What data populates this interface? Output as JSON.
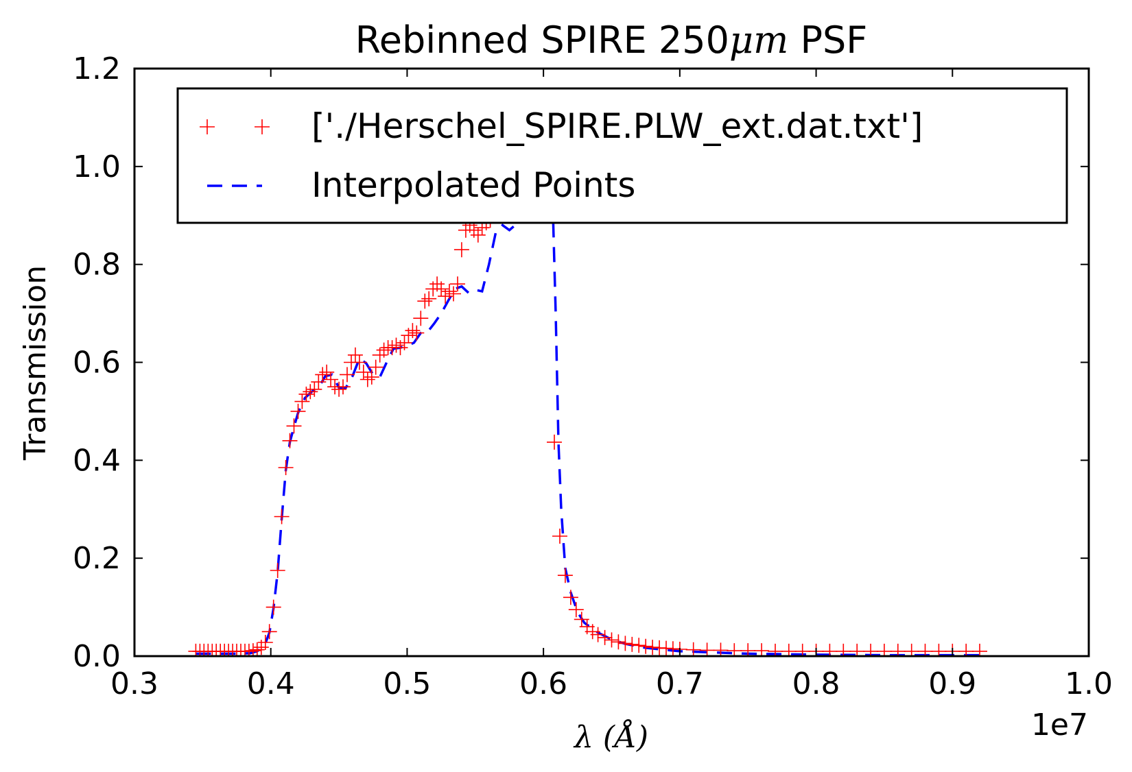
{
  "chart_data": {
    "type": "line",
    "title_prefix": "Rebinned SPIRE 250",
    "title_math": "μm",
    "title_suffix": " PSF",
    "xlabel": "λ (Å)",
    "ylabel": "Transmission",
    "x_offset_label": "1e7",
    "xlim": [
      0.3,
      1.0
    ],
    "ylim": [
      0.0,
      1.2
    ],
    "xticks": [
      "0.3",
      "0.4",
      "0.5",
      "0.6",
      "0.7",
      "0.8",
      "0.9",
      "1.0"
    ],
    "yticks": [
      "0.0",
      "0.2",
      "0.4",
      "0.6",
      "0.8",
      "1.0",
      "1.2"
    ],
    "grid": false,
    "legend_position": "top-right",
    "colors": {
      "points": "#ff0000",
      "interp": "#0000ff"
    },
    "series": [
      {
        "name": "['./Herschel_SPIRE.PLW_ext.dat.txt']",
        "style": "markers",
        "x": [
          0.345,
          0.348,
          0.351,
          0.354,
          0.357,
          0.36,
          0.363,
          0.366,
          0.369,
          0.372,
          0.375,
          0.378,
          0.381,
          0.384,
          0.387,
          0.39,
          0.393,
          0.396,
          0.399,
          0.402,
          0.405,
          0.408,
          0.411,
          0.414,
          0.417,
          0.42,
          0.423,
          0.426,
          0.429,
          0.432,
          0.435,
          0.438,
          0.441,
          0.444,
          0.447,
          0.45,
          0.453,
          0.456,
          0.459,
          0.462,
          0.465,
          0.468,
          0.471,
          0.474,
          0.477,
          0.48,
          0.483,
          0.486,
          0.489,
          0.492,
          0.495,
          0.498,
          0.501,
          0.504,
          0.507,
          0.51,
          0.513,
          0.516,
          0.519,
          0.522,
          0.525,
          0.528,
          0.531,
          0.534,
          0.537,
          0.54,
          0.543,
          0.546,
          0.549,
          0.552,
          0.555,
          0.558,
          0.561,
          0.564,
          0.567,
          0.57,
          0.573,
          0.576,
          0.579,
          0.582,
          0.585,
          0.588,
          0.592,
          0.596,
          0.6,
          0.604,
          0.608,
          0.612,
          0.616,
          0.62,
          0.624,
          0.628,
          0.632,
          0.636,
          0.64,
          0.645,
          0.65,
          0.655,
          0.66,
          0.665,
          0.67,
          0.675,
          0.68,
          0.685,
          0.69,
          0.695,
          0.7,
          0.71,
          0.72,
          0.73,
          0.74,
          0.75,
          0.76,
          0.77,
          0.78,
          0.79,
          0.8,
          0.81,
          0.82,
          0.83,
          0.84,
          0.85,
          0.86,
          0.87,
          0.88,
          0.89,
          0.9,
          0.91,
          0.92
        ],
        "y": [
          0.01,
          0.01,
          0.01,
          0.01,
          0.01,
          0.01,
          0.01,
          0.01,
          0.01,
          0.01,
          0.01,
          0.01,
          0.01,
          0.01,
          0.011,
          0.013,
          0.018,
          0.028,
          0.05,
          0.1,
          0.175,
          0.285,
          0.385,
          0.44,
          0.47,
          0.5,
          0.52,
          0.535,
          0.54,
          0.545,
          0.56,
          0.575,
          0.58,
          0.565,
          0.55,
          0.545,
          0.55,
          0.575,
          0.6,
          0.615,
          0.6,
          0.58,
          0.565,
          0.57,
          0.59,
          0.615,
          0.625,
          0.63,
          0.63,
          0.635,
          0.63,
          0.64,
          0.655,
          0.665,
          0.66,
          0.69,
          0.725,
          0.73,
          0.75,
          0.76,
          0.75,
          0.735,
          0.745,
          0.74,
          0.76,
          0.83,
          0.87,
          0.88,
          0.87,
          0.86,
          0.875,
          0.885,
          0.89,
          0.9,
          0.91,
          0.92,
          0.93,
          0.94,
          0.95,
          0.96,
          0.965,
          0.97,
          0.975,
          0.975,
          0.97,
          0.96,
          0.437,
          0.245,
          0.165,
          0.12,
          0.095,
          0.075,
          0.06,
          0.05,
          0.044,
          0.038,
          0.033,
          0.029,
          0.026,
          0.024,
          0.022,
          0.02,
          0.018,
          0.017,
          0.016,
          0.015,
          0.014,
          0.013,
          0.012,
          0.012,
          0.011,
          0.011,
          0.011,
          0.01,
          0.01,
          0.01,
          0.01,
          0.01,
          0.01,
          0.01,
          0.01,
          0.01,
          0.01,
          0.01,
          0.01,
          0.01,
          0.01,
          0.01,
          0.01
        ]
      },
      {
        "name": "Interpolated Points",
        "style": "dashed",
        "x": [
          0.345,
          0.36,
          0.375,
          0.385,
          0.39,
          0.393,
          0.396,
          0.399,
          0.402,
          0.405,
          0.408,
          0.411,
          0.414,
          0.417,
          0.42,
          0.425,
          0.43,
          0.435,
          0.44,
          0.445,
          0.45,
          0.455,
          0.46,
          0.465,
          0.47,
          0.475,
          0.48,
          0.485,
          0.49,
          0.495,
          0.5,
          0.505,
          0.51,
          0.515,
          0.52,
          0.525,
          0.53,
          0.535,
          0.54,
          0.545,
          0.55,
          0.555,
          0.56,
          0.565,
          0.57,
          0.575,
          0.58,
          0.585,
          0.59,
          0.595,
          0.6,
          0.604,
          0.607,
          0.609,
          0.611,
          0.613,
          0.616,
          0.62,
          0.625,
          0.63,
          0.64,
          0.65,
          0.66,
          0.675,
          0.7,
          0.75,
          0.8,
          0.85,
          0.9,
          0.92
        ],
        "y": [
          0.005,
          0.005,
          0.005,
          0.006,
          0.01,
          0.016,
          0.026,
          0.048,
          0.098,
          0.172,
          0.28,
          0.38,
          0.437,
          0.468,
          0.497,
          0.527,
          0.54,
          0.548,
          0.572,
          0.575,
          0.548,
          0.548,
          0.572,
          0.608,
          0.598,
          0.575,
          0.57,
          0.6,
          0.628,
          0.63,
          0.634,
          0.64,
          0.66,
          0.662,
          0.68,
          0.7,
          0.725,
          0.75,
          0.755,
          0.742,
          0.748,
          0.745,
          0.8,
          0.865,
          0.88,
          0.87,
          0.882,
          0.895,
          0.91,
          0.935,
          0.96,
          0.98,
          0.9,
          0.7,
          0.437,
          0.3,
          0.18,
          0.13,
          0.09,
          0.068,
          0.048,
          0.034,
          0.025,
          0.017,
          0.01,
          0.005,
          0.003,
          0.002,
          0.002,
          0.002
        ]
      }
    ]
  }
}
